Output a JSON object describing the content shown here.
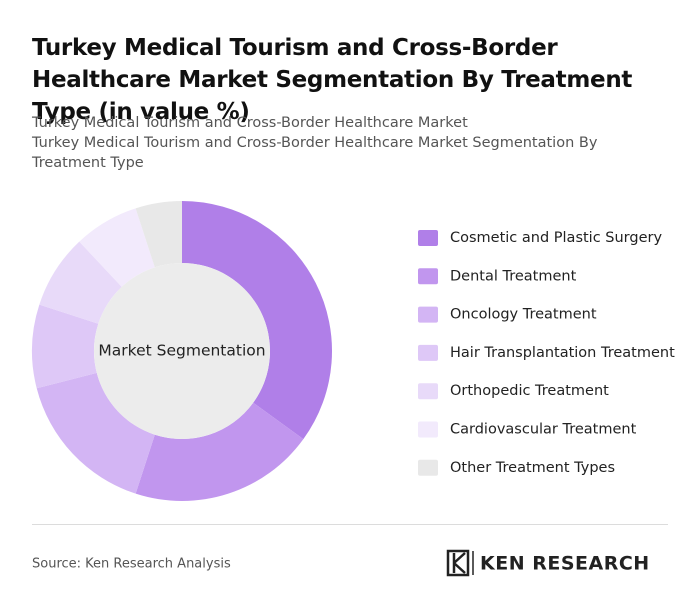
{
  "chart_data": {
    "type": "pie",
    "title": "Turkey Medical Tourism and Cross-Border Healthcare Market Segmentation By Treatment Type (in value %)",
    "subtitle": [
      "Turkey Medical Tourism and Cross-Border Healthcare Market",
      "Turkey Medical Tourism and Cross-Border Healthcare Market Segmentation By Treatment Type"
    ],
    "center_label": "Market Segmentation",
    "categories": [
      "Cosmetic and Plastic Surgery",
      "Dental Treatment",
      "Oncology Treatment",
      "Hair Transplantation Treatment",
      "Orthopedic Treatment",
      "Cardiovascular Treatment",
      "Other Treatment Types"
    ],
    "values": [
      35,
      20,
      16,
      9,
      8,
      7,
      5
    ],
    "colors": [
      "#b07fe8",
      "#c196ee",
      "#d3b5f4",
      "#dec8f7",
      "#e8daf9",
      "#f2eafc",
      "#e8e8e8"
    ],
    "legend": "right",
    "source": "Source: Ken Research Analysis",
    "brand": "KEN RESEARCH"
  }
}
